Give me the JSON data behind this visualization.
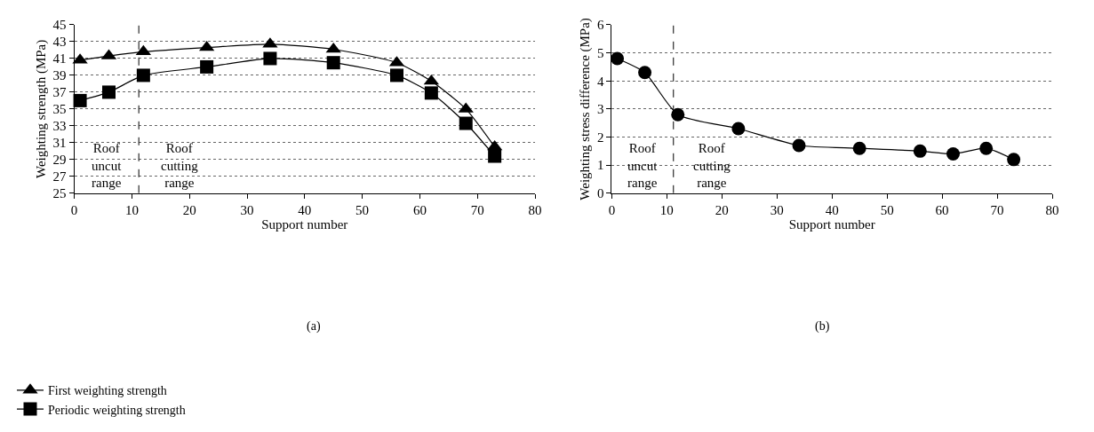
{
  "chart_data": [
    {
      "type": "line",
      "xlabel": "Support number",
      "ylabel": "Weighting strength (MPa)",
      "x": [
        1,
        6,
        12,
        23,
        34,
        45,
        56,
        62,
        68,
        73
      ],
      "series": [
        {
          "name": "First weighting strength",
          "color": "#000000",
          "marker": "triangle",
          "values": [
            40.8,
            41.3,
            41.8,
            42.3,
            42.7,
            42.1,
            40.5,
            38.3,
            35.0,
            30.5
          ]
        },
        {
          "name": "Periodic weighting strength",
          "color": "#000000",
          "marker": "square",
          "values": [
            36.0,
            37.0,
            39.0,
            40.0,
            41.0,
            40.5,
            39.0,
            36.9,
            33.3,
            29.4
          ]
        }
      ],
      "xlim": [
        0,
        80
      ],
      "xticks": [
        0,
        10,
        20,
        30,
        40,
        50,
        60,
        70,
        80
      ],
      "ylim": [
        25,
        45
      ],
      "yticks": [
        25,
        27,
        29,
        31,
        33,
        35,
        37,
        39,
        41,
        43,
        45
      ],
      "grid": "y",
      "legend": "bottom left",
      "line_style": "solid",
      "ref_lines": [
        {
          "axis": "x",
          "value": 11.2,
          "line_style": "dashed",
          "color": "#000000"
        }
      ],
      "annotations": [
        "Roof\nuncut\nrange",
        "Roof\ncutting\nrange",
        "(a)"
      ]
    },
    {
      "type": "line",
      "xlabel": "Support number",
      "ylabel": "Weighting stress difference (MPa)",
      "x": [
        1,
        6,
        12,
        23,
        34,
        45,
        56,
        62,
        68,
        73
      ],
      "series": [
        {
          "color": "#000000",
          "marker": "circle",
          "values": [
            4.8,
            4.3,
            2.8,
            2.3,
            1.7,
            1.6,
            1.5,
            1.4,
            1.6,
            1.2
          ]
        }
      ],
      "xlim": [
        0,
        80
      ],
      "xticks": [
        0,
        10,
        20,
        30,
        40,
        50,
        60,
        70,
        80
      ],
      "ylim": [
        0,
        6
      ],
      "yticks": [
        0,
        1,
        2,
        3,
        4,
        5,
        6
      ],
      "grid": "y",
      "legend": false,
      "line_style": "solid",
      "ref_lines": [
        {
          "axis": "x",
          "value": 11.2,
          "line_style": "dashed",
          "color": "#000000"
        }
      ],
      "annotations": [
        "Roof\nuncut\nrange",
        "Roof\ncutting\nrange",
        "(b)"
      ]
    }
  ]
}
